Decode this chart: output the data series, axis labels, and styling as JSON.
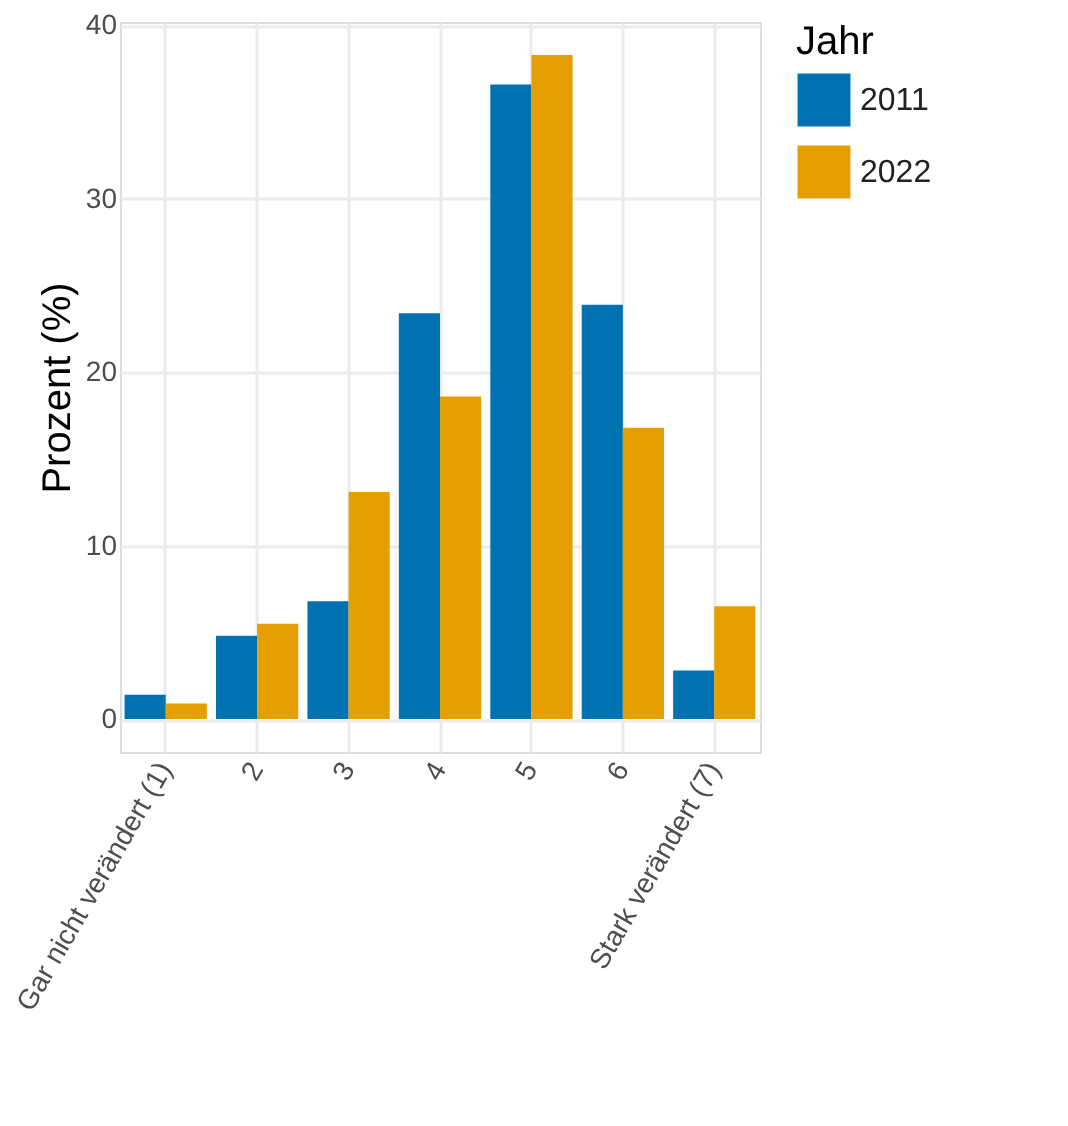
{
  "chart_data": {
    "type": "bar",
    "ylabel": "Prozent (%)",
    "legend_title": "Jahr",
    "categories": [
      "Gar nicht verändert (1)",
      "2",
      "3",
      "4",
      "5",
      "6",
      "Stark verändert (7)"
    ],
    "series": [
      {
        "name": "2011",
        "color": "#0072b2",
        "values": [
          1.4,
          4.8,
          6.8,
          23.4,
          36.6,
          23.9,
          2.8
        ]
      },
      {
        "name": "2022",
        "color": "#e69f00",
        "values": [
          0.9,
          5.5,
          13.1,
          18.6,
          38.3,
          16.8,
          6.5
        ]
      }
    ],
    "ylim": [
      -1.9,
      40.2
    ],
    "yticks": [
      0,
      10,
      20,
      30,
      40
    ],
    "grid": true,
    "legend": "right"
  }
}
